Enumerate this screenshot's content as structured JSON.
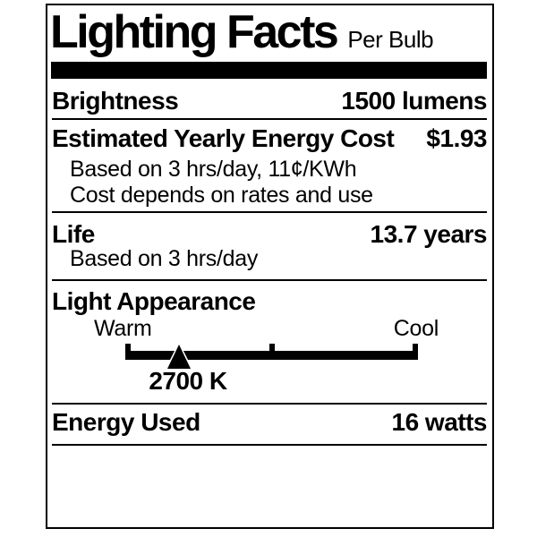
{
  "header": {
    "title": "Lighting Facts",
    "subtitle": "Per Bulb"
  },
  "brightness": {
    "label": "Brightness",
    "value": "1500 lumens"
  },
  "energy_cost": {
    "label": "Estimated Yearly Energy Cost",
    "value": "$1.93",
    "note1": "Based on 3 hrs/day, 11¢/KWh",
    "note2": "Cost depends on rates and use"
  },
  "life": {
    "label": "Life",
    "value": "13.7 years",
    "note": "Based on 3 hrs/day"
  },
  "light_appearance": {
    "label": "Light Appearance",
    "warm_label": "Warm",
    "cool_label": "Cool",
    "marker_value": "2700 K",
    "marker_position_pct": 18.35
  },
  "energy_used": {
    "label": "Energy Used",
    "value": "16 watts"
  },
  "colors": {
    "ink": "#000000",
    "background": "#ffffff"
  }
}
